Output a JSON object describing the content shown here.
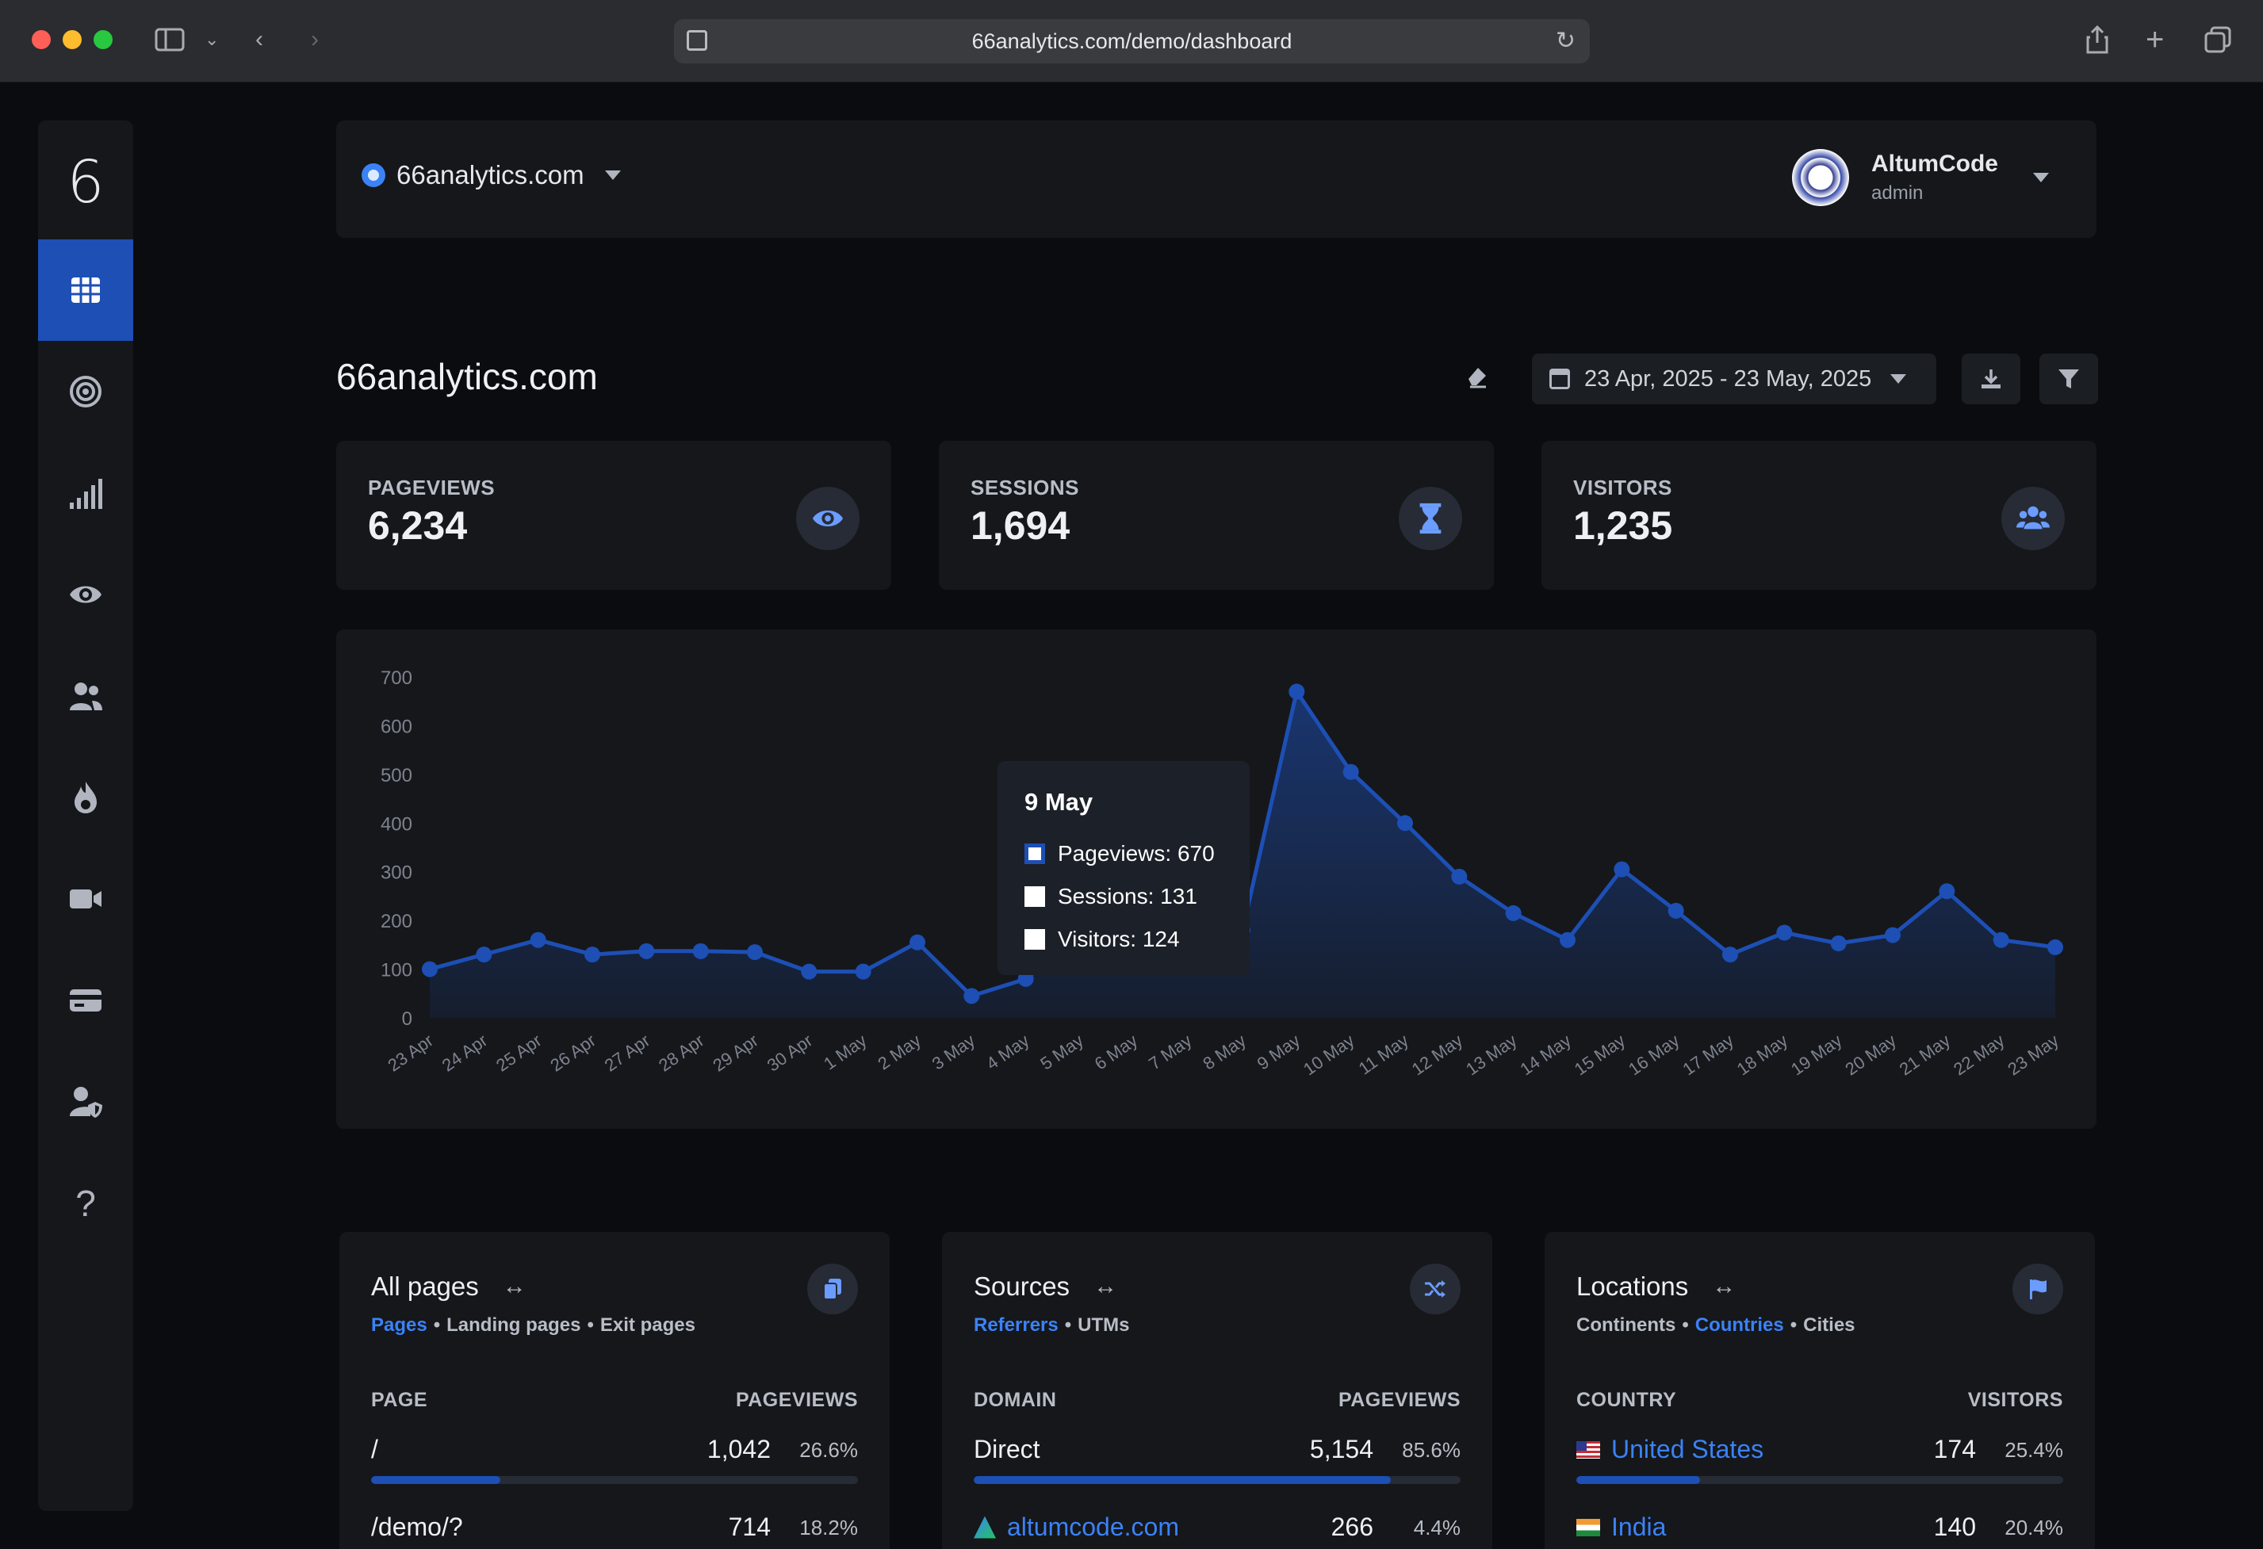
{
  "browser": {
    "url": "66analytics.com/demo/dashboard"
  },
  "header": {
    "site_name": "66analytics.com",
    "user_name": "AltumCode",
    "user_role": "admin"
  },
  "sidebar": {
    "logo": "6",
    "items": [
      {
        "icon": "grid-icon",
        "active": true
      },
      {
        "icon": "target-icon"
      },
      {
        "icon": "signal-bars-icon"
      },
      {
        "icon": "eye-icon"
      },
      {
        "icon": "users-icon"
      },
      {
        "icon": "fire-icon"
      },
      {
        "icon": "video-icon"
      },
      {
        "icon": "card-icon"
      },
      {
        "icon": "user-shield-icon"
      },
      {
        "icon": "question-icon"
      }
    ]
  },
  "page": {
    "title": "66analytics.com",
    "date_range": "23 Apr, 2025 - 23 May, 2025"
  },
  "stats": [
    {
      "label": "PAGEVIEWS",
      "value": "6,234",
      "icon": "eye-icon"
    },
    {
      "label": "SESSIONS",
      "value": "1,694",
      "icon": "hourglass-icon"
    },
    {
      "label": "VISITORS",
      "value": "1,235",
      "icon": "users-icon"
    }
  ],
  "chart_data": {
    "type": "area",
    "ylim": [
      0,
      700
    ],
    "y_ticks": [
      0,
      100,
      200,
      300,
      400,
      500,
      600,
      700
    ],
    "categories": [
      "23 Apr",
      "24 Apr",
      "25 Apr",
      "26 Apr",
      "27 Apr",
      "28 Apr",
      "29 Apr",
      "30 Apr",
      "1 May",
      "2 May",
      "3 May",
      "4 May",
      "5 May",
      "6 May",
      "7 May",
      "8 May",
      "9 May",
      "10 May",
      "11 May",
      "12 May",
      "13 May",
      "14 May",
      "15 May",
      "16 May",
      "17 May",
      "18 May",
      "19 May",
      "20 May",
      "21 May",
      "22 May",
      "23 May"
    ],
    "series": [
      {
        "name": "Pageviews",
        "values": [
          100,
          130,
          160,
          130,
          137,
          137,
          135,
          95,
          95,
          155,
          45,
          80,
          170,
          210,
          220,
          180,
          670,
          505,
          400,
          290,
          215,
          160,
          305,
          220,
          130,
          175,
          153,
          170,
          260,
          160,
          145
        ]
      }
    ],
    "color": "#1d4fb5",
    "tooltip": {
      "title": "9 May",
      "rows": [
        "Pageviews: 670",
        "Sessions: 131",
        "Visitors: 124"
      ]
    }
  },
  "cards": [
    {
      "title": "All pages",
      "tabs": [
        "Pages",
        "Landing pages",
        "Exit pages"
      ],
      "active_tab": 0,
      "col_left": "PAGE",
      "col_right": "PAGEVIEWS",
      "rows": [
        {
          "name": "/",
          "value": "1,042",
          "pct": "26.6%",
          "fill": 26.6,
          "link": false
        },
        {
          "name": "/demo/?",
          "value": "714",
          "pct": "18.2%",
          "fill": 18.2,
          "link": false
        }
      ]
    },
    {
      "title": "Sources",
      "tabs": [
        "Referrers",
        "UTMs"
      ],
      "active_tab": 0,
      "col_left": "DOMAIN",
      "col_right": "PAGEVIEWS",
      "rows": [
        {
          "name": "Direct",
          "value": "5,154",
          "pct": "85.6%",
          "fill": 85.6,
          "link": false
        },
        {
          "name": "altumcode.com",
          "value": "266",
          "pct": "4.4%",
          "fill": 4.4,
          "link": true
        }
      ]
    },
    {
      "title": "Locations",
      "tabs": [
        "Continents",
        "Countries",
        "Cities"
      ],
      "active_tab": 1,
      "col_left": "COUNTRY",
      "col_right": "VISITORS",
      "rows": [
        {
          "name": "United States",
          "value": "174",
          "pct": "25.4%",
          "fill": 25.4,
          "link": true
        },
        {
          "name": "India",
          "value": "140",
          "pct": "20.4%",
          "fill": 20.4,
          "link": true
        }
      ]
    }
  ]
}
